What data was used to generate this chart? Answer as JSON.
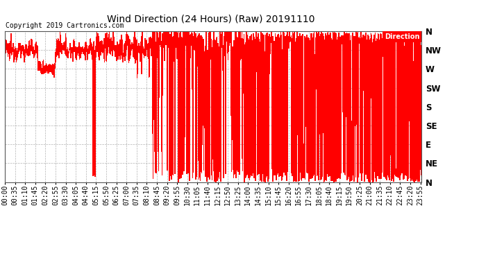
{
  "title": "Wind Direction (24 Hours) (Raw) 20191110",
  "copyright_text": "Copyright 2019 Cartronics.com",
  "ytick_labels": [
    "N",
    "NE",
    "E",
    "SE",
    "S",
    "SW",
    "W",
    "NW",
    "N"
  ],
  "ytick_values": [
    0,
    45,
    90,
    135,
    180,
    225,
    270,
    315,
    360
  ],
  "ylim": [
    0,
    360
  ],
  "bg_color": "#ffffff",
  "plot_bg_color": "#ffffff",
  "grid_color": "#aaaaaa",
  "line_color": "#ff0000",
  "legend_label": "Direction",
  "legend_bg": "#ff0000",
  "legend_text_color": "#ffffff",
  "x_tick_interval_minutes": 35,
  "total_minutes": 1440,
  "title_fontsize": 10,
  "copyright_fontsize": 7,
  "axis_fontsize": 7.5
}
